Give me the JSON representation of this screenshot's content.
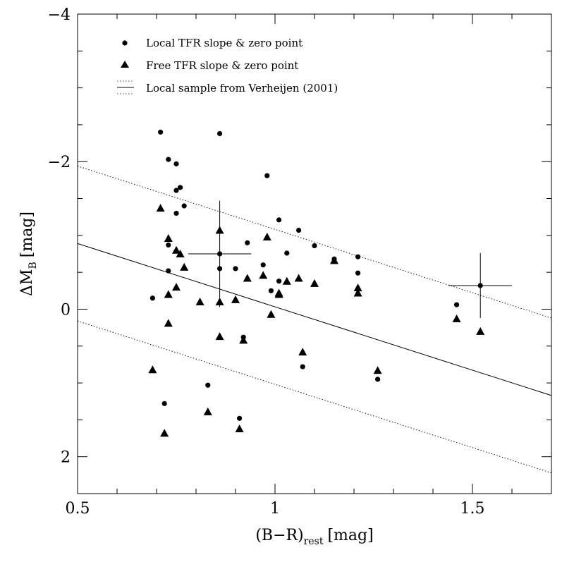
{
  "chart_data": {
    "type": "scatter",
    "xlabel_main": "(B−R)",
    "xlabel_sub": "rest",
    "xlabel_unit": "[mag]",
    "ylabel_main": "ΔM",
    "ylabel_sub": "B",
    "ylabel_unit": "[mag]",
    "xlim": [
      0.5,
      1.7
    ],
    "ylim": [
      2.5,
      -4
    ],
    "x_ticks": [
      0.5,
      1,
      1.5
    ],
    "x_tick_labels": [
      "0.5",
      "1",
      "1.5"
    ],
    "y_ticks": [
      2,
      0,
      -2,
      -4
    ],
    "y_tick_labels": [
      "2",
      "0",
      "−2",
      "−4"
    ],
    "legend": [
      {
        "marker": "circle",
        "label": "Local TFR slope & zero point"
      },
      {
        "marker": "triangle",
        "label": "Free TFR slope & zero point"
      },
      {
        "marker": "lines",
        "label": "Local sample from Verheijen (2001)"
      }
    ],
    "series": [
      {
        "name": "Local TFR slope & zero point",
        "marker": "circle",
        "points": [
          [
            0.71,
            -2.4
          ],
          [
            0.73,
            -2.03
          ],
          [
            0.75,
            -1.97
          ],
          [
            0.75,
            -1.61
          ],
          [
            0.76,
            -1.65
          ],
          [
            0.77,
            -1.4
          ],
          [
            0.75,
            -1.3
          ],
          [
            0.73,
            -0.87
          ],
          [
            0.73,
            -0.52
          ],
          [
            0.69,
            -0.15
          ],
          [
            0.86,
            -2.38
          ],
          [
            0.86,
            -0.75
          ],
          [
            0.86,
            -0.55
          ],
          [
            0.9,
            -0.55
          ],
          [
            0.93,
            -0.9
          ],
          [
            0.92,
            0.38
          ],
          [
            0.98,
            -1.81
          ],
          [
            0.97,
            -0.6
          ],
          [
            0.99,
            -0.25
          ],
          [
            1.01,
            -1.21
          ],
          [
            1.01,
            -0.38
          ],
          [
            1.03,
            -0.76
          ],
          [
            1.06,
            -1.07
          ],
          [
            1.1,
            -0.86
          ],
          [
            1.15,
            -0.68
          ],
          [
            1.07,
            0.78
          ],
          [
            1.21,
            -0.71
          ],
          [
            1.21,
            -0.49
          ],
          [
            1.26,
            0.95
          ],
          [
            1.46,
            -0.06
          ],
          [
            1.52,
            -0.32
          ],
          [
            0.72,
            1.28
          ],
          [
            0.83,
            1.03
          ],
          [
            0.91,
            1.48
          ]
        ]
      },
      {
        "name": "Free TFR slope & zero point",
        "marker": "triangle",
        "points": [
          [
            0.71,
            -1.37
          ],
          [
            0.73,
            -0.96
          ],
          [
            0.75,
            -0.8
          ],
          [
            0.76,
            -0.75
          ],
          [
            0.77,
            -0.57
          ],
          [
            0.75,
            -0.3
          ],
          [
            0.73,
            -0.2
          ],
          [
            0.73,
            0.19
          ],
          [
            0.69,
            0.82
          ],
          [
            0.72,
            1.68
          ],
          [
            0.81,
            -0.1
          ],
          [
            0.86,
            -1.07
          ],
          [
            0.86,
            -0.1
          ],
          [
            0.86,
            0.37
          ],
          [
            0.9,
            -0.13
          ],
          [
            0.92,
            0.42
          ],
          [
            0.93,
            -0.42
          ],
          [
            0.98,
            -0.98
          ],
          [
            0.97,
            -0.46
          ],
          [
            0.99,
            0.07
          ],
          [
            1.01,
            -0.22
          ],
          [
            1.01,
            -0.2
          ],
          [
            1.03,
            -0.38
          ],
          [
            1.06,
            -0.42
          ],
          [
            1.1,
            -0.35
          ],
          [
            1.15,
            -0.66
          ],
          [
            1.07,
            0.58
          ],
          [
            1.21,
            -0.29
          ],
          [
            1.21,
            -0.22
          ],
          [
            1.26,
            0.83
          ],
          [
            1.46,
            0.13
          ],
          [
            1.52,
            0.3
          ],
          [
            0.83,
            1.39
          ],
          [
            0.91,
            1.62
          ]
        ]
      }
    ],
    "error_bars": [
      {
        "x": 0.86,
        "y": -0.75,
        "xerr": 0.08,
        "yerr": 0.72
      },
      {
        "x": 1.52,
        "y": -0.32,
        "xerr": 0.08,
        "yerr": 0.44
      }
    ],
    "lines": [
      {
        "name": "Verheijen (2001) fit",
        "style": "solid",
        "x": [
          0.5,
          1.7
        ],
        "y": [
          -0.89,
          1.17
        ]
      },
      {
        "name": "upper scatter",
        "style": "dotted",
        "x": [
          0.5,
          1.7
        ],
        "y": [
          -1.94,
          0.12
        ]
      },
      {
        "name": "lower scatter",
        "style": "dotted",
        "x": [
          0.5,
          1.7
        ],
        "y": [
          0.16,
          2.22
        ]
      }
    ]
  }
}
